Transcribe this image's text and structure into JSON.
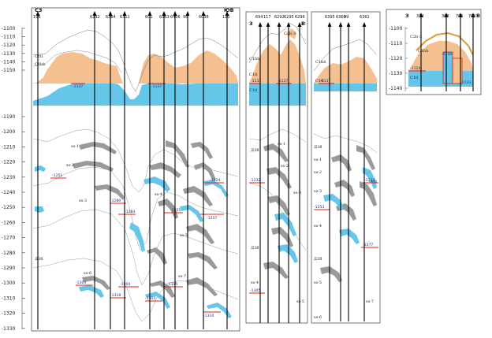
{
  "colors": {
    "oil": "#f5c090",
    "water": "#66c6ea",
    "coal": "#9a9a9a",
    "contact": "#e0201a",
    "well": "#000000",
    "frame": "#555555"
  },
  "scale_top": {
    "ticks": [
      "-1100",
      "-1110",
      "-1120",
      "-1130",
      "-1140",
      "-1150"
    ]
  },
  "scale_bottom": {
    "ticks": [
      "-1190",
      "-1200",
      "-1210",
      "-1220",
      "-1230",
      "-1240",
      "-1250",
      "-1260",
      "-1270",
      "-1280",
      "-1290",
      "-1300",
      "-1310",
      "-1320",
      "-1330"
    ]
  },
  "panel1": {
    "left_dir": "СЗ",
    "right_dir": "ЮВ",
    "wells": [
      "196",
      "6232",
      "6384",
      "6311",
      "601",
      "6363",
      "6406",
      "98",
      "6038",
      "110"
    ],
    "top_layers": [
      "C1tl",
      "C1bb"
    ],
    "top_contacts": [
      "-1137",
      "-1137"
    ],
    "layers": [
      "Д3fl"
    ],
    "coal_labels": [
      "ss-1",
      "ss-2",
      "ss-3",
      "ss-4",
      "ss-5",
      "ss-6",
      "ss-7"
    ],
    "contacts": [
      "-1251",
      "-1284",
      "-1280",
      "-1255",
      "-1257",
      "-1224",
      "-1304",
      "-1304",
      "-1318",
      "-1315",
      "-1303",
      "-1310"
    ]
  },
  "panel2": {
    "left_dir": "З",
    "right_dir": "В",
    "wells": [
      "694",
      "117",
      "6292",
      "6295",
      "6296"
    ],
    "top_layers": [
      "C2b-3",
      "C1bb",
      "C1tl",
      "C1tl"
    ],
    "top_contacts": [
      "-1131",
      "-1137"
    ],
    "layers": [
      "Д3fl",
      "Д3fl"
    ],
    "coal_labels": [
      "ss-1",
      "ss-2",
      "ss-3",
      "ss-4",
      "ss-5"
    ],
    "contacts": [
      "-1232",
      "-1305"
    ]
  },
  "panel3": {
    "wells": [
      "6395",
      "6360",
      "99",
      "6361"
    ],
    "top_layers": [
      "C1bb",
      "C1tl"
    ],
    "top_contacts": [
      "-1137"
    ],
    "layers": [
      "Д3fl",
      "Д3fl"
    ],
    "coal_labels": [
      "ss-1",
      "ss-2",
      "ss-3",
      "ss-4",
      "ss-5",
      "ss-6",
      "ss-7",
      "ss-8"
    ],
    "contacts": [
      "-1234",
      "-1253",
      "-1277"
    ]
  },
  "panel4": {
    "left_dir": "З",
    "right_dir": "В",
    "wells": [
      "314",
      "388",
      "705",
      "706"
    ],
    "ticks": [
      "-1100",
      "-1110",
      "-1120",
      "-1130",
      "-1140"
    ],
    "top_layers": [
      "C2b-3",
      "C1bb",
      "C1tl"
    ],
    "top_contacts": [
      "-1124",
      "-1116",
      "-1133"
    ]
  }
}
